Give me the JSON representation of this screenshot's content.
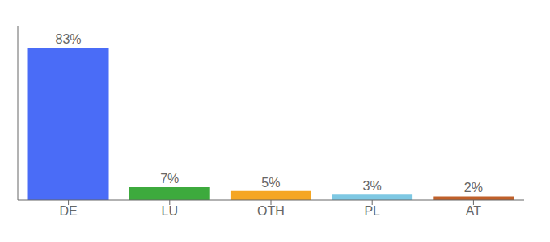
{
  "chart_data": {
    "type": "bar",
    "categories": [
      "DE",
      "LU",
      "OTH",
      "PL",
      "AT"
    ],
    "values": [
      83,
      7,
      5,
      3,
      2
    ],
    "value_labels": [
      "83%",
      "7%",
      "5%",
      "3%",
      "2%"
    ],
    "colors": [
      "#4A6CF7",
      "#3DAA3D",
      "#F5A623",
      "#7EC8E3",
      "#C0602A"
    ],
    "ylim": [
      0,
      95
    ],
    "data_labels": true,
    "tick_labels": "x",
    "grid": false
  }
}
